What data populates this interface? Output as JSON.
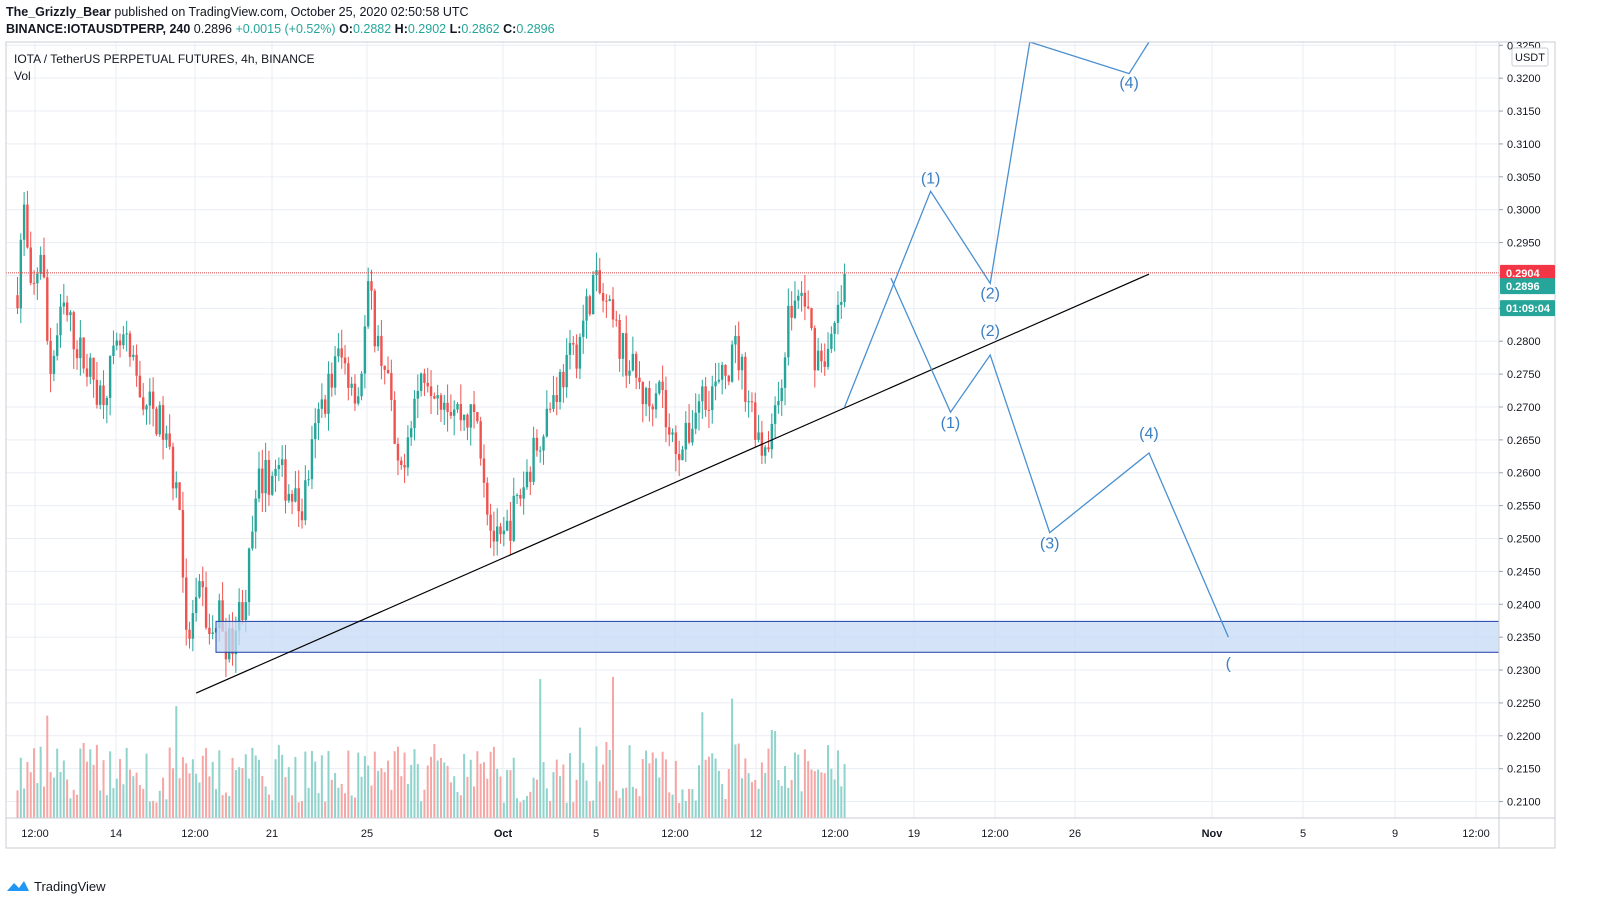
{
  "header": {
    "author": "The_Grizzly_Bear",
    "published_text": "published on TradingView.com, October 25, 2020 02:50:58 UTC",
    "symbol": "BINANCE:IOTAUSDTPERP, 240",
    "last": "0.2896",
    "change": "+0.0015 (+0.52%)",
    "o_label": "O:",
    "o": "0.2882",
    "h_label": "H:",
    "h": "0.2902",
    "l_label": "L:",
    "l": "0.2862",
    "c_label": "C:",
    "c": "0.2896"
  },
  "legend": {
    "title": "IOTA / TetherUS PERPETUAL FUTURES, 4h, BINANCE",
    "vol": "Vol"
  },
  "footer": {
    "brand": "TradingView"
  },
  "colors": {
    "up": "#26a69a",
    "down": "#ef5350",
    "wave": "#4a90d0",
    "zone": "#c5daf5",
    "zone_border": "#1e40a8",
    "resistance": "#d04040",
    "trendline": "#000000",
    "grid": "#e9eef3"
  },
  "chart_data": {
    "type": "candlestick",
    "currency": "USDT",
    "y_ticks": [
      "0.2100",
      "0.2150",
      "0.2200",
      "0.2250",
      "0.2300",
      "0.2350",
      "0.2400",
      "0.2450",
      "0.2500",
      "0.2550",
      "0.2600",
      "0.2650",
      "0.2700",
      "0.2750",
      "0.2800",
      "0.2850",
      "0.2900",
      "0.2950",
      "0.3000",
      "0.3050",
      "0.3100",
      "0.3150",
      "0.3200",
      "0.3250"
    ],
    "x_ticks": [
      "12:00",
      "14",
      "12:00",
      "21",
      "25",
      "Oct",
      "5",
      "12:00",
      "12",
      "12:00",
      "19",
      "12:00",
      "26",
      "Nov",
      "5",
      "9",
      "12:00"
    ],
    "ylim": [
      0.2075,
      0.3255
    ],
    "price_labels": {
      "resistance": "0.2904",
      "last": "0.2896",
      "countdown": "01:09:04"
    },
    "resistance_level": 0.2904,
    "trendline": {
      "from": [
        "Sep 22",
        0.2265
      ],
      "to": [
        "Nov 9",
        0.2902
      ]
    },
    "support_zone": {
      "from": "Sep 23",
      "low": 0.2327,
      "high": 0.2374
    },
    "wave_paths": [
      {
        "name": "bullish",
        "points": [
          [
            "Oct 24 16:00",
            0.27
          ],
          [
            "Oct 29",
            0.3028
          ],
          [
            "Nov 1",
            0.2888
          ],
          [
            "Nov 3",
            0.3255
          ],
          [
            "Nov 8",
            0.3207
          ],
          [
            "Nov 9",
            0.3255
          ]
        ],
        "labels": [
          [
            "(1)",
            "Oct 29",
            0.304
          ],
          [
            "(2)",
            "Nov 1",
            0.2865
          ],
          [
            "(4)",
            "Nov 8",
            0.3185
          ]
        ]
      },
      {
        "name": "bearish",
        "points": [
          [
            "Oct 27",
            0.2896
          ],
          [
            "Oct 30",
            0.2692
          ],
          [
            "Nov 1",
            0.2779
          ],
          [
            "Nov 4",
            0.2509
          ],
          [
            "Nov 9",
            0.263
          ],
          [
            "Nov 13",
            0.235
          ]
        ],
        "labels": [
          [
            "(1)",
            "Oct 30",
            0.2668
          ],
          [
            "(2)",
            "Nov 1",
            0.2808
          ],
          [
            "(3)",
            "Nov 4",
            0.2485
          ],
          [
            "(4)",
            "Nov 9",
            0.2652
          ],
          [
            "(",
            "Nov 13",
            0.2302
          ]
        ]
      }
    ]
  }
}
